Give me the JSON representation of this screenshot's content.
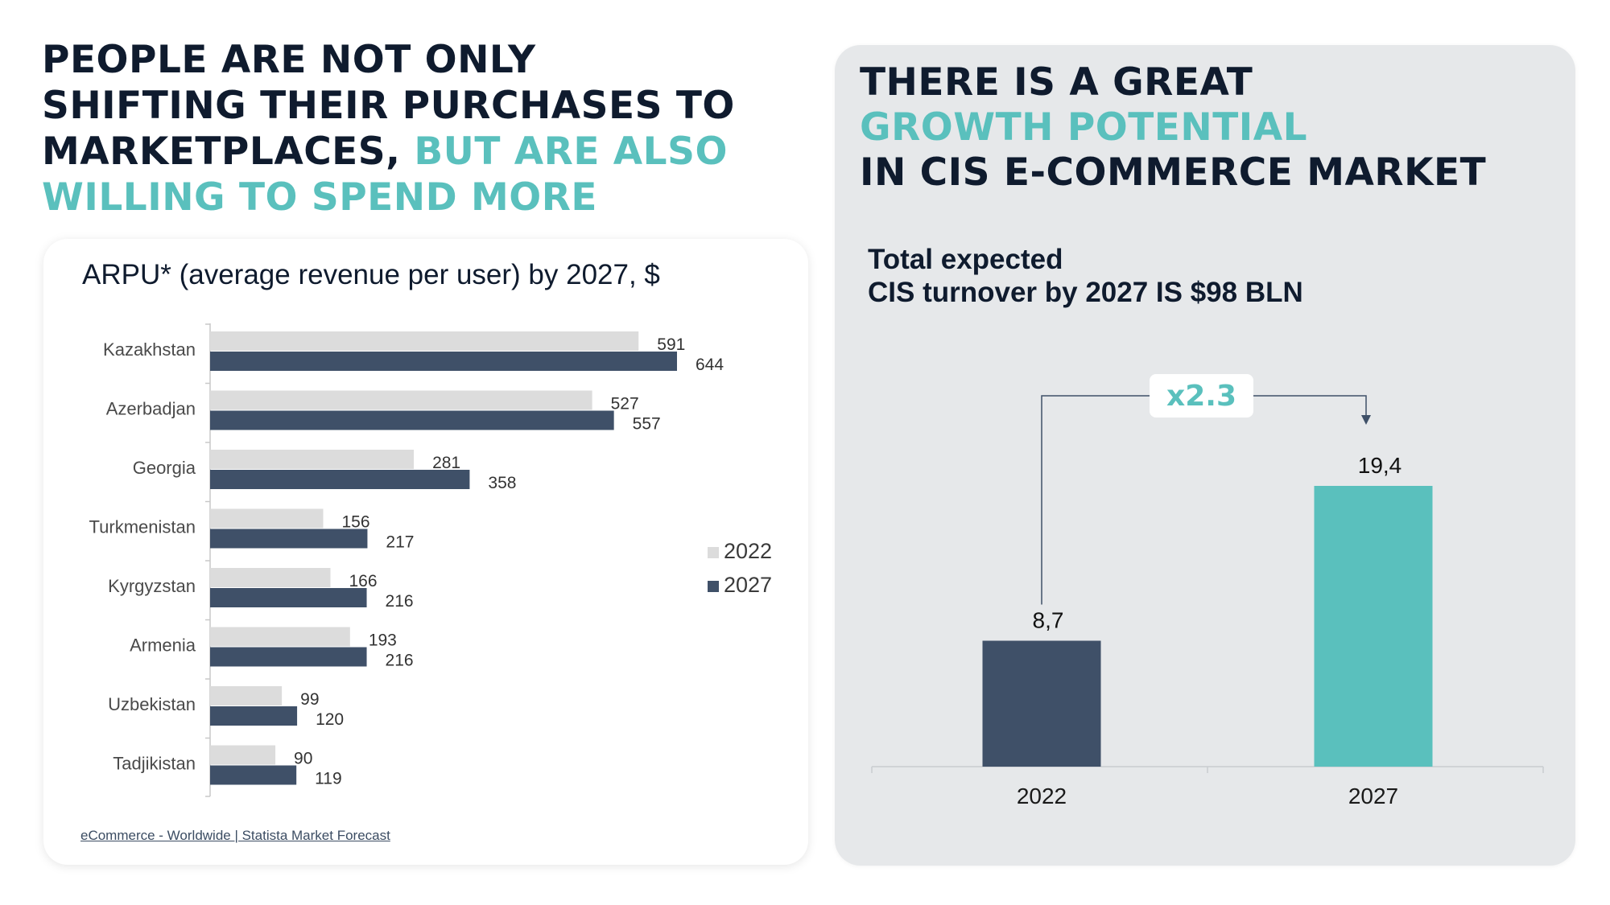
{
  "left_headline": {
    "line1": "PEOPLE ARE NOT ONLY",
    "line2": "SHIFTING THEIR PURCHASES TO",
    "line3_dark": "MARKETPLACES, ",
    "line3_highlight": "BUT ARE ALSO",
    "line4_highlight": "WILLING TO SPEND MORE"
  },
  "arpu_card": {
    "title": "ARPU* (average revenue per user) by 2027, $",
    "source": "eCommerce - Worldwide | Statista Market Forecast"
  },
  "right_headline": {
    "line1": "THERE IS A GREAT",
    "line2_highlight": "GROWTH POTENTIAL",
    "line3": "IN CIS E-COMMERCE MARKET"
  },
  "growth_card": {
    "subtitle_line1": "Total expected",
    "subtitle_line2": "CIS turnover by 2027 IS $98 BLN",
    "multiplier": "x2.3"
  },
  "colors": {
    "dark_navy": "#0f1b2e",
    "teal": "#5ac0bd",
    "bar_2022": "#dcdcdc",
    "bar_2027": "#3f5068",
    "card_grey": "#e6e8ea"
  },
  "chart_data": [
    {
      "type": "bar",
      "orientation": "horizontal",
      "title": "ARPU* (average revenue per user) by 2027, $",
      "categories": [
        "Kazakhstan",
        "Azerbadjan",
        "Georgia",
        "Turkmenistan",
        "Kyrgyzstan",
        "Armenia",
        "Uzbekistan",
        "Tadjikistan"
      ],
      "series": [
        {
          "name": "2022",
          "color": "#dcdcdc",
          "values": [
            591,
            527,
            281,
            156,
            166,
            193,
            99,
            90
          ]
        },
        {
          "name": "2027",
          "color": "#3f5068",
          "values": [
            644,
            557,
            358,
            217,
            216,
            216,
            120,
            119
          ]
        }
      ],
      "xlim": [
        0,
        700
      ],
      "grid": false,
      "legend": "right",
      "data_labels": true
    },
    {
      "type": "bar",
      "orientation": "vertical",
      "categories": [
        "2022",
        "2027"
      ],
      "values": [
        8.7,
        19.4
      ],
      "value_labels": [
        "8,7",
        "19,4"
      ],
      "colors": [
        "#3f5068",
        "#5ac0bd"
      ],
      "ylim": [
        0,
        20
      ],
      "grid": false,
      "annotation": "x2.3"
    }
  ]
}
